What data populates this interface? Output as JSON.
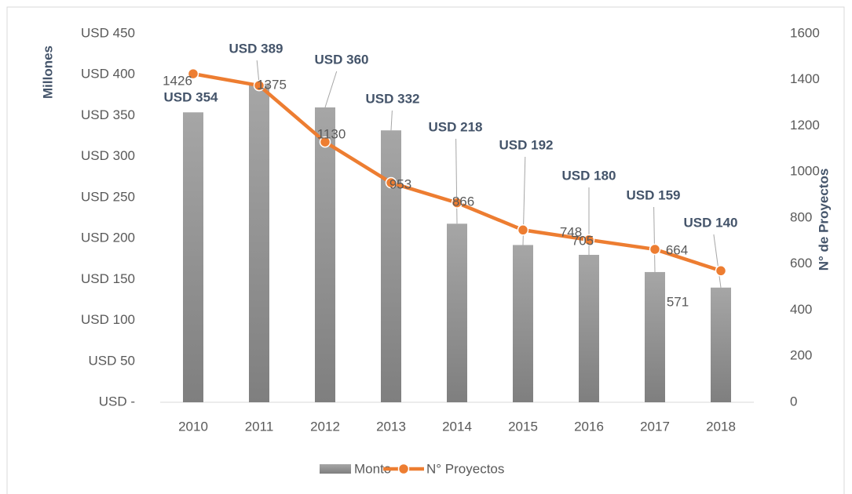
{
  "chart_data": {
    "type": "bar_line",
    "categories": [
      "2010",
      "2011",
      "2012",
      "2013",
      "2014",
      "2015",
      "2016",
      "2017",
      "2018"
    ],
    "series": [
      {
        "name": "Monto",
        "color": "#8c8c8c",
        "values": [
          354,
          389,
          360,
          332,
          218,
          192,
          180,
          159,
          140
        ],
        "value_labels": [
          "USD 354",
          "USD 389",
          "USD 360",
          "USD 332",
          "USD 218",
          "USD 192",
          "USD 180",
          "USD 159",
          "USD 140"
        ]
      },
      {
        "name": "N° Proyectos",
        "color": "#ed7d31",
        "axis": "y2",
        "values": [
          1426,
          1375,
          1130,
          953,
          866,
          748,
          705,
          664,
          571
        ]
      }
    ],
    "ylabel": "Millones",
    "y2label": "N° de Proyectos",
    "ylim": [
      0,
      450
    ],
    "yticks": [
      {
        "value": 0,
        "label": "USD -"
      },
      {
        "value": 50,
        "label": "USD 50"
      },
      {
        "value": 100,
        "label": "USD 100"
      },
      {
        "value": 150,
        "label": "USD 150"
      },
      {
        "value": 200,
        "label": "USD 200"
      },
      {
        "value": 250,
        "label": "USD 250"
      },
      {
        "value": 300,
        "label": "USD 300"
      },
      {
        "value": 350,
        "label": "USD 350"
      },
      {
        "value": 400,
        "label": "USD 400"
      },
      {
        "value": 450,
        "label": "USD 450"
      }
    ],
    "y2lim": [
      0,
      1600
    ],
    "y2ticks": [
      0,
      200,
      400,
      600,
      800,
      1000,
      1200,
      1400,
      1600
    ],
    "legend": "bottom"
  }
}
